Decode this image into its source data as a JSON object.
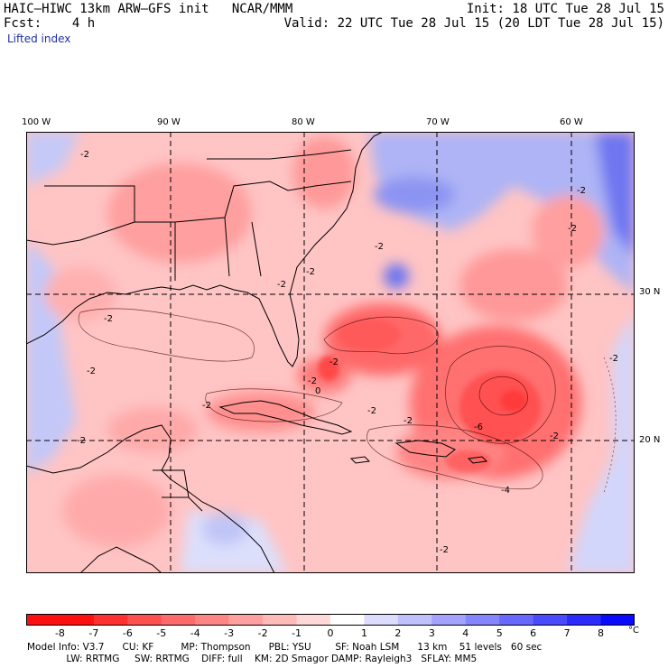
{
  "header": {
    "model_line": "HAIC–HIWC 13km ARW–GFS init   NCAR/MMM",
    "forecast_line": "Fcst:    4 h",
    "field": "Lifted index",
    "init_line": "Init: 18 UTC Tue 28 Jul 15",
    "valid_line": "Valid: 22 UTC Tue 28 Jul 15 (20 LDT Tue 28 Jul 15)"
  },
  "map": {
    "longitude_labels": [
      "100 W",
      "90 W",
      "80 W",
      "70 W",
      "60 W"
    ],
    "latitude_labels": [
      "30 N",
      "20 N"
    ],
    "contour_labels": [
      "-2",
      "-2",
      "-2",
      "-2",
      "-2",
      "-2",
      "-2",
      "-2",
      "-2",
      "-2",
      "-2",
      "-2",
      "-2",
      "-2",
      "-2",
      "-2",
      "-6",
      "-4",
      "0",
      "-2"
    ]
  },
  "colorbar": {
    "ticks": [
      "-8",
      "-7",
      "-6",
      "-5",
      "-4",
      "-3",
      "-2",
      "-1",
      "0",
      "1",
      "2",
      "3",
      "4",
      "5",
      "6",
      "7",
      "8"
    ],
    "unit": "°C",
    "colors": [
      "#ff1010",
      "#ff3030",
      "#ff5050",
      "#ff6b6b",
      "#ff8585",
      "#ffa0a0",
      "#ffbaba",
      "#ffd8d8",
      "#ffffff",
      "#dcdcff",
      "#c0c0ff",
      "#a3a3ff",
      "#8585ff",
      "#6868ff",
      "#4a4aff",
      "#2b2bff",
      "#0a0aff"
    ]
  },
  "footer": {
    "line1": "Model Info: V3.7      CU: KF         MP: Thompson      PBL: YSU        SF: Noah LSM      13 km    51 levels   60 sec",
    "line2": "             LW: RRTMG     SW: RRTMG    DIFF: full    KM: 2D Smagor DAMP: Rayleigh3   SFLAY: MM5"
  }
}
